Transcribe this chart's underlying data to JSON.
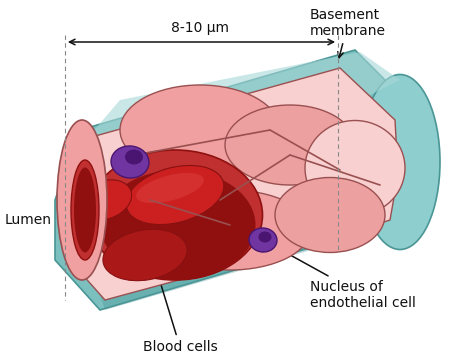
{
  "labels": {
    "basement_membrane": "Basement\nmembrane",
    "lumen": "Lumen",
    "nucleus": "Nucleus of\nendothelial cell",
    "blood_cells": "Blood cells",
    "diameter": "8-10 μm"
  },
  "colors": {
    "teal_outer": "#7bbfbf",
    "teal_mid": "#6aafaf",
    "teal_dark": "#4a9595",
    "teal_light": "#a8d8d8",
    "teal_cap": "#8ecece",
    "pink_wall": "#f0a0a0",
    "pink_light": "#f8d0d0",
    "pink_mid": "#eda0a0",
    "dark_border": "#555555",
    "cell_border": "#9a5050",
    "lumen_color": "#c03030",
    "lumen_dark": "#901010",
    "red_cell1": "#cc2020",
    "red_cell2": "#aa1818",
    "red_cell_dark": "#881010",
    "purple_nuc": "#7035a0",
    "purple_dark": "#4a1570",
    "bg": "#ffffff",
    "annotation": "#111111",
    "dashed_line": "#888888"
  },
  "label_fontsize": 10,
  "annotation_color": "#111111"
}
